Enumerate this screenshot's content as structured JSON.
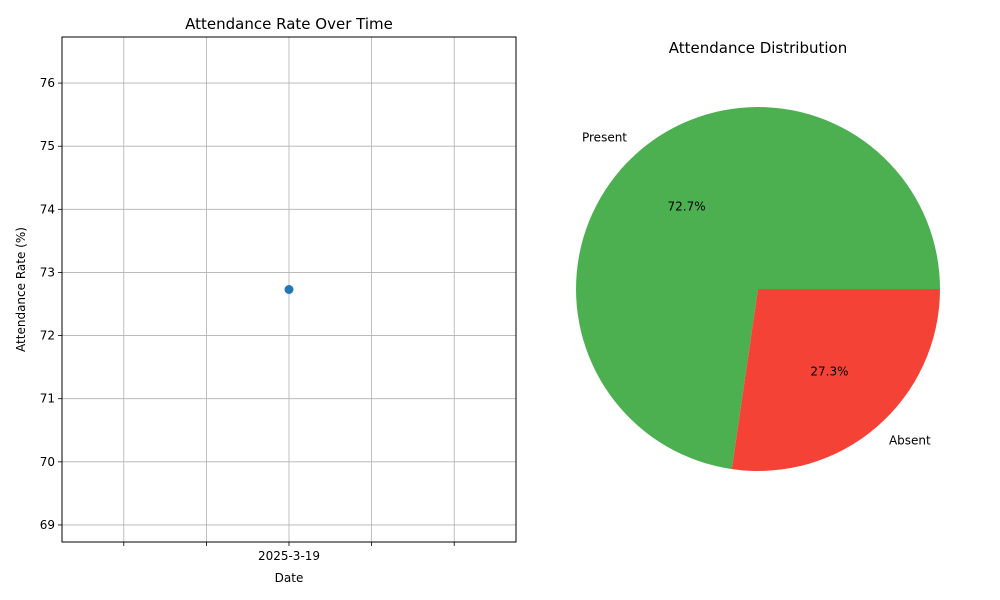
{
  "chart_data": [
    {
      "type": "line",
      "title": "Attendance Rate Over Time",
      "xlabel": "Date",
      "ylabel": "Attendance Rate (%)",
      "x": [
        "2025-3-19"
      ],
      "series": [
        {
          "values": [
            72.73
          ],
          "color": "#1f77b4"
        }
      ],
      "ylim": [
        68.73,
        76.73
      ],
      "yticks": [
        69,
        70,
        71,
        72,
        73,
        74,
        75,
        76
      ],
      "grid": true
    },
    {
      "type": "pie",
      "title": "Attendance Distribution",
      "slices": [
        {
          "label": "Present",
          "value": 72.7,
          "pct_label": "72.7%",
          "color": "#4caf50"
        },
        {
          "label": "Absent",
          "value": 27.3,
          "pct_label": "27.3%",
          "color": "#f44336"
        }
      ]
    }
  ]
}
